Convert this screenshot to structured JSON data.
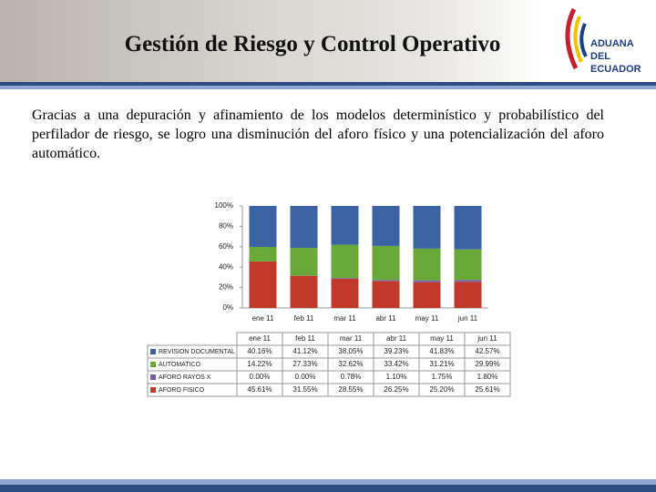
{
  "header": {
    "title": "Gestión de Riesgo y Control Operativo",
    "logo_lines": [
      "ADUANA",
      "DEL",
      "ECUADOR"
    ]
  },
  "body": {
    "paragraph": "Gracias a una depuración y afinamiento de los modelos determinístico y probabilístico del perfilador de riesgo, se logro una disminución del aforo físico y una potencialización del aforo automático."
  },
  "chart_data": {
    "type": "stacked_bar",
    "categories": [
      "ene 11",
      "feb 11",
      "mar 11",
      "abr 11",
      "may 11",
      "jun 11"
    ],
    "series": [
      {
        "name": "REVISION DOCUMENTAL",
        "color": "#3b62a3",
        "values": [
          40.16,
          41.12,
          38.05,
          39.23,
          41.83,
          42.57
        ],
        "value_labels": [
          "40.16%",
          "41.12%",
          "38.05%",
          "39.23%",
          "41.83%",
          "42.57%"
        ]
      },
      {
        "name": "AUTOMATICO",
        "color": "#6aa83a",
        "values": [
          14.22,
          27.33,
          32.62,
          33.42,
          31.21,
          29.99
        ],
        "value_labels": [
          "14.22%",
          "27.33%",
          "32.62%",
          "33.42%",
          "31.21%",
          "29.99%"
        ]
      },
      {
        "name": "AFORO RAYOS X",
        "color": "#7b5ea7",
        "values": [
          0.0,
          0.0,
          0.78,
          1.1,
          1.75,
          1.8
        ],
        "value_labels": [
          "0.00%",
          "0.00%",
          "0.78%",
          "1.10%",
          "1.75%",
          "1.80%"
        ]
      },
      {
        "name": "AFORO FISICO",
        "color": "#c0392b",
        "values": [
          45.61,
          31.55,
          28.55,
          26.25,
          25.2,
          25.61
        ],
        "value_labels": [
          "45.61%",
          "31.55%",
          "28.55%",
          "26.25%",
          "25.20%",
          "25.61%"
        ]
      }
    ],
    "ylim": [
      0,
      100
    ],
    "yticks": [
      {
        "value": 0,
        "label": "0%"
      },
      {
        "value": 20,
        "label": "20%"
      },
      {
        "value": 40,
        "label": "40%"
      },
      {
        "value": 60,
        "label": "60%"
      },
      {
        "value": 80,
        "label": "80%"
      },
      {
        "value": 100,
        "label": "100%"
      }
    ]
  }
}
